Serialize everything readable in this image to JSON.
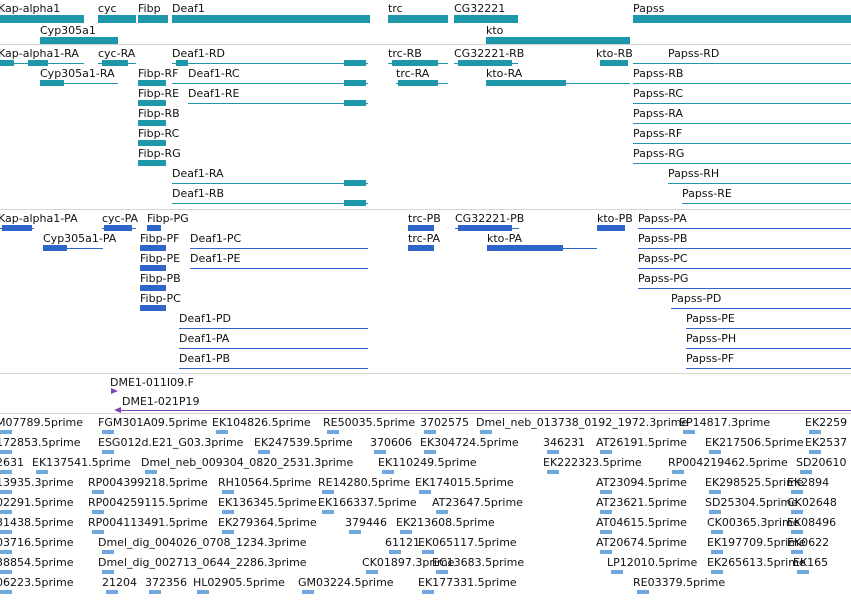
{
  "colors": {
    "gene": "#1d97aa",
    "transcript": "#1f97aa",
    "protein": "#2f64c9",
    "clone": "#7a44b8",
    "separator": "#d4d4d4"
  },
  "track_genes": {
    "labels": [
      "Kap-alpha1",
      "cyc",
      "Fibp",
      "Deaf1",
      "trc",
      "CG32221",
      "Papss",
      "Cyp305a1",
      "kto"
    ]
  },
  "track_transcripts": {
    "labels": [
      "Kap-alpha1-RA",
      "cyc-RA",
      "Deaf1-RD",
      "trc-RB",
      "CG32221-RB",
      "kto-RB",
      "Papss-RD",
      "Cyp305a1-RA",
      "Fibp-RF",
      "Deaf1-RC",
      "trc-RA",
      "kto-RA",
      "Papss-RB",
      "Fibp-RE",
      "Deaf1-RE",
      "Papss-RC",
      "Fibp-RB",
      "Papss-RA",
      "Fibp-RC",
      "Papss-RF",
      "Fibp-RG",
      "Papss-RG",
      "Deaf1-RA",
      "Papss-RH",
      "Deaf1-RB",
      "Papss-RE"
    ]
  },
  "track_proteins": {
    "labels": [
      "Kap-alpha1-PA",
      "cyc-PA",
      "Fibp-PG",
      "trc-PB",
      "CG32221-PB",
      "kto-PB",
      "Papss-PA",
      "Cyp305a1-PA",
      "Fibp-PF",
      "Deaf1-PC",
      "trc-PA",
      "kto-PA",
      "Papss-PB",
      "Fibp-PE",
      "Deaf1-PE",
      "Papss-PC",
      "Fibp-PB",
      "Papss-PG",
      "Fibp-PC",
      "Papss-PD",
      "Deaf1-PD",
      "Papss-PE",
      "Deaf1-PA",
      "Papss-PH",
      "Deaf1-PB",
      "Papss-PF"
    ]
  },
  "track_clones": {
    "labels": [
      "DME1-011I09.F",
      "DME1-021P19"
    ]
  },
  "track_ests": {
    "rows": [
      [
        "M07789.5prime",
        "FGM301A09.5prime",
        "RE50035.5prime",
        "EK104826.5prime",
        "3702575",
        "Dmel_neb_013738_0192_1972.3prime",
        "EP14817.3prime",
        "EK2259"
      ],
      [
        "172853.5prime",
        "ESG012d.E21_G03.3prime",
        "EK247539.5prime",
        "370606",
        "EK304724.5prime",
        "346231",
        "AT26191.5prime",
        "EK217506.5prime",
        "EK2537"
      ],
      [
        "2631",
        "EK137541.5prime",
        "Dmel_neb_009304_0820_2531.3prime",
        "EK110249.5prime",
        "EK222323.5prime",
        "RP004219462.5prime",
        "SD20610"
      ],
      [
        "13935.3prime",
        "RP004399218.5prime",
        "RH10564.5prime",
        "RE14280.5prime",
        "EK174015.5prime",
        "AT23094.5prime",
        "EK298525.5prime",
        "EK2894"
      ],
      [
        "02291.5prime",
        "RP004259115.5prime",
        "EK136345.5prime",
        "EK166337.5prime",
        "AT23647.5prime",
        "AT23621.5prime",
        "SD25304.5prime",
        "CK02648"
      ],
      [
        "31438.5prime",
        "RP004113491.5prime",
        "EK279364.5prime",
        "379446",
        "EK213608.5prime",
        "AT04615.5prime",
        "CK00365.3prime",
        "EK08496"
      ],
      [
        "03716.5prime",
        "Dmel_dig_004026_0708_1234.3prime",
        "61121",
        "EK065117.5prime",
        "AT20674.5prime",
        "EK197709.5prime",
        "EK0622"
      ],
      [
        "38854.5prime",
        "Dmel_dig_002713_0644_2286.3prime",
        "CK01897.3prime",
        "EC13683.5prime",
        "LP12010.5prime",
        "EK265613.5prime",
        "EK165"
      ],
      [
        "06223.5prime",
        "21204",
        "372356",
        "HL02905.5prime",
        "GM03224.5prime",
        "EK177331.5prime",
        "RE03379.5prime"
      ]
    ]
  }
}
